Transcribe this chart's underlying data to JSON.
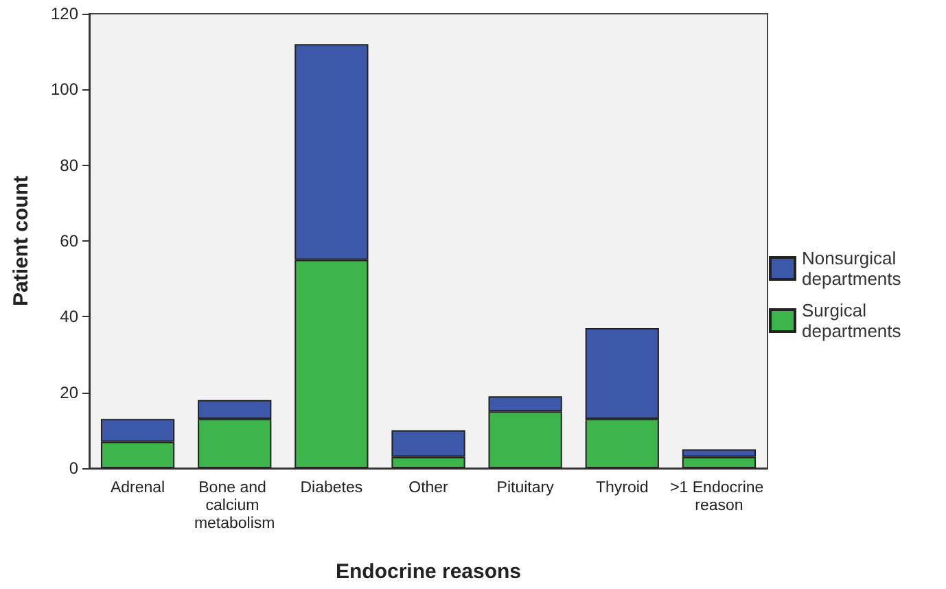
{
  "chart_data": {
    "type": "bar",
    "stacked": true,
    "xlabel": "Endocrine reasons",
    "ylabel": "Patient count",
    "categories": [
      "Adrenal",
      "Bone and calcium metabolism",
      "Diabetes",
      "Other",
      "Pituitary",
      "Thyroid",
      ">1 Endocrine reason"
    ],
    "series": [
      {
        "name": "Surgical departments",
        "color": "#3cb44a",
        "values": [
          7,
          13,
          55,
          3,
          15,
          13,
          3
        ]
      },
      {
        "name": "Nonsurgical departments",
        "color": "#3d58a8",
        "values": [
          6,
          5,
          57,
          7,
          4,
          24,
          2
        ]
      }
    ],
    "ylim": [
      0,
      120
    ],
    "yticks": [
      0,
      20,
      40,
      60,
      80,
      100,
      120
    ],
    "grid": false,
    "legend": "right"
  }
}
